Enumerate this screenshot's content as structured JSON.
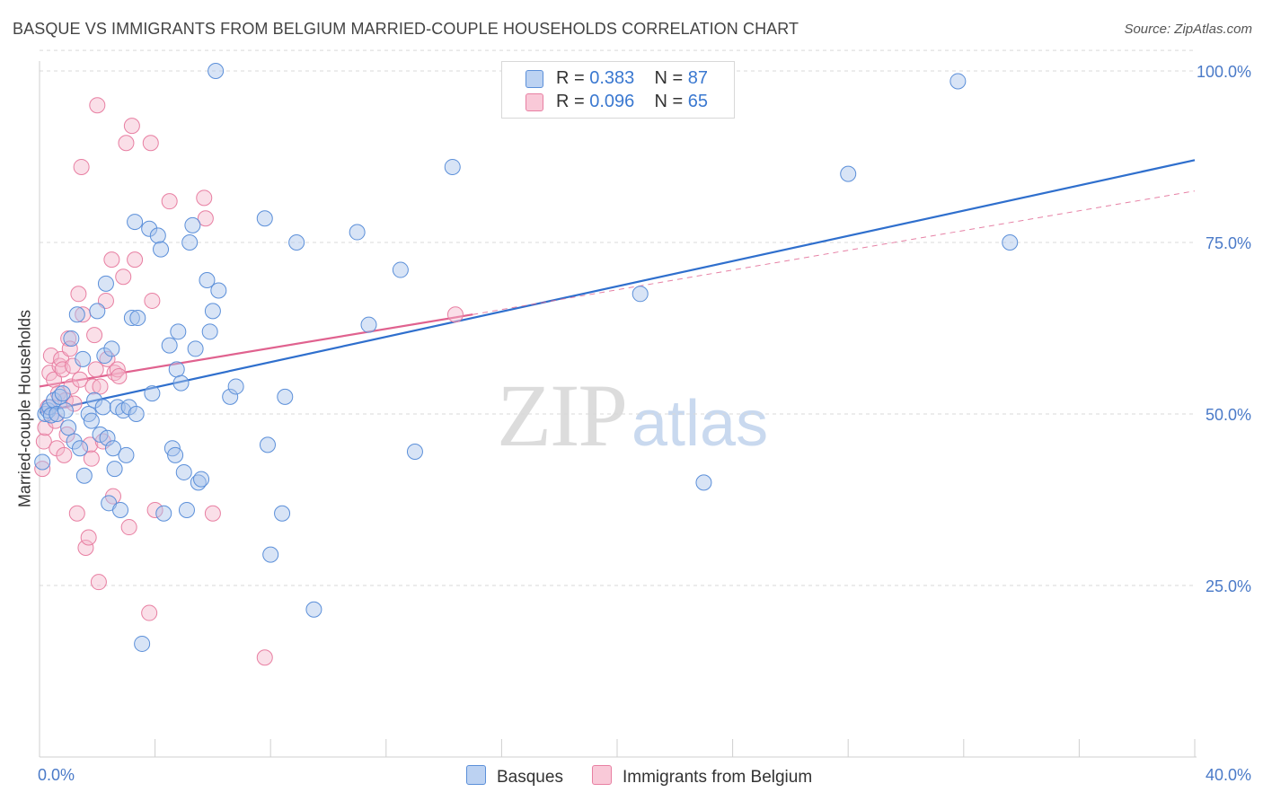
{
  "title": "BASQUE VS IMMIGRANTS FROM BELGIUM MARRIED-COUPLE HOUSEHOLDS CORRELATION CHART",
  "source": "Source: ZipAtlas.com",
  "watermark": {
    "zip": "ZIP",
    "atlas": "atlas"
  },
  "legend": {
    "rows": [
      {
        "r_label": "R =",
        "r_value": "0.383",
        "n_label": "N =",
        "n_value": "87"
      },
      {
        "r_label": "R =",
        "r_value": "0.096",
        "n_label": "N =",
        "n_value": "65"
      }
    ]
  },
  "bottom_legend": {
    "series1": "Basques",
    "series2": "Immigrants from Belgium"
  },
  "colors": {
    "blue_fill": "#a9c4ec",
    "blue_stroke": "#5b8fd9",
    "blue_line": "#2f6fcd",
    "pink_fill": "#f5b8cb",
    "pink_stroke": "#e87fa2",
    "pink_line": "#e0628f",
    "axis_text": "#4a7ac8",
    "grid": "#d9d9d9"
  },
  "chart_data": {
    "type": "scatter",
    "title": "BASQUE VS IMMIGRANTS FROM BELGIUM MARRIED-COUPLE HOUSEHOLDS CORRELATION CHART",
    "xlabel": "",
    "ylabel": "Married-couple Households",
    "xlim": [
      0,
      40
    ],
    "ylim": [
      0,
      105
    ],
    "x_tick_labels": [
      "0.0%",
      "40.0%"
    ],
    "y_ticks": [
      25,
      50,
      75,
      100
    ],
    "y_tick_labels": [
      "25.0%",
      "50.0%",
      "75.0%",
      "100.0%"
    ],
    "series": [
      {
        "name": "Basques",
        "r": 0.383,
        "n": 87,
        "trend": {
          "x": [
            0,
            40
          ],
          "y": [
            50.2,
            87.0
          ],
          "style": "solid"
        },
        "points": [
          [
            0.1,
            43
          ],
          [
            0.2,
            50
          ],
          [
            0.3,
            50.5
          ],
          [
            0.35,
            51
          ],
          [
            0.4,
            49.8
          ],
          [
            0.5,
            52
          ],
          [
            0.6,
            50
          ],
          [
            0.7,
            52.5
          ],
          [
            0.8,
            53
          ],
          [
            0.9,
            50.5
          ],
          [
            1.0,
            48
          ],
          [
            1.1,
            61
          ],
          [
            1.2,
            46
          ],
          [
            1.3,
            64.5
          ],
          [
            1.4,
            45
          ],
          [
            1.5,
            58
          ],
          [
            1.55,
            41
          ],
          [
            1.7,
            50
          ],
          [
            1.8,
            49
          ],
          [
            1.9,
            52
          ],
          [
            2.0,
            65
          ],
          [
            2.1,
            47
          ],
          [
            2.2,
            51
          ],
          [
            2.25,
            58.5
          ],
          [
            2.3,
            69
          ],
          [
            2.35,
            46.5
          ],
          [
            2.4,
            37
          ],
          [
            2.5,
            59.5
          ],
          [
            2.55,
            45
          ],
          [
            2.6,
            42
          ],
          [
            2.7,
            51
          ],
          [
            2.8,
            36
          ],
          [
            2.9,
            50.5
          ],
          [
            3.0,
            44
          ],
          [
            3.1,
            51
          ],
          [
            3.2,
            64
          ],
          [
            3.3,
            78
          ],
          [
            3.35,
            50
          ],
          [
            3.4,
            64
          ],
          [
            3.55,
            16.5
          ],
          [
            3.8,
            77
          ],
          [
            3.9,
            53
          ],
          [
            4.1,
            76
          ],
          [
            4.2,
            74
          ],
          [
            4.3,
            35.5
          ],
          [
            4.5,
            60
          ],
          [
            4.6,
            45
          ],
          [
            4.7,
            44
          ],
          [
            4.75,
            56.5
          ],
          [
            4.8,
            62
          ],
          [
            4.9,
            54.5
          ],
          [
            5.0,
            41.5
          ],
          [
            5.1,
            36
          ],
          [
            5.2,
            75
          ],
          [
            5.3,
            77.5
          ],
          [
            5.4,
            59.5
          ],
          [
            5.5,
            40
          ],
          [
            5.6,
            40.5
          ],
          [
            5.8,
            69.5
          ],
          [
            5.9,
            62
          ],
          [
            6.0,
            65
          ],
          [
            6.1,
            100
          ],
          [
            6.2,
            68
          ],
          [
            6.6,
            52.5
          ],
          [
            6.8,
            54
          ],
          [
            7.8,
            78.5
          ],
          [
            7.9,
            45.5
          ],
          [
            8.0,
            29.5
          ],
          [
            8.4,
            35.5
          ],
          [
            8.5,
            52.5
          ],
          [
            8.9,
            75
          ],
          [
            9.5,
            21.5
          ],
          [
            11.0,
            76.5
          ],
          [
            11.4,
            63
          ],
          [
            12.5,
            71
          ],
          [
            13.0,
            44.5
          ],
          [
            14.3,
            86
          ],
          [
            20.8,
            67.5
          ],
          [
            23.0,
            40
          ],
          [
            28.0,
            85
          ],
          [
            31.8,
            98.5
          ],
          [
            33.6,
            75
          ]
        ]
      },
      {
        "name": "Immigrants from Belgium",
        "r": 0.096,
        "n": 65,
        "trend": {
          "x": [
            0,
            15
          ],
          "y": [
            54.0,
            64.5
          ],
          "style": "solid",
          "extension": {
            "x": [
              15,
              40
            ],
            "y": [
              64.5,
              82.5
            ],
            "style": "dashed"
          }
        },
        "points": [
          [
            0.1,
            42
          ],
          [
            0.15,
            46
          ],
          [
            0.2,
            48
          ],
          [
            0.3,
            51
          ],
          [
            0.35,
            56
          ],
          [
            0.4,
            58.5
          ],
          [
            0.5,
            55
          ],
          [
            0.55,
            49
          ],
          [
            0.6,
            45
          ],
          [
            0.65,
            53
          ],
          [
            0.7,
            57
          ],
          [
            0.75,
            58
          ],
          [
            0.8,
            56.5
          ],
          [
            0.85,
            44
          ],
          [
            0.9,
            52
          ],
          [
            0.95,
            47
          ],
          [
            1.0,
            61
          ],
          [
            1.05,
            59.5
          ],
          [
            1.1,
            54
          ],
          [
            1.15,
            57
          ],
          [
            1.2,
            51.5
          ],
          [
            1.3,
            35.5
          ],
          [
            1.35,
            67.5
          ],
          [
            1.4,
            55
          ],
          [
            1.45,
            86
          ],
          [
            1.5,
            64.5
          ],
          [
            1.6,
            30.5
          ],
          [
            1.7,
            32
          ],
          [
            1.75,
            45.5
          ],
          [
            1.8,
            43.5
          ],
          [
            1.85,
            54
          ],
          [
            1.9,
            61.5
          ],
          [
            1.95,
            56.5
          ],
          [
            2.0,
            95
          ],
          [
            2.05,
            25.5
          ],
          [
            2.1,
            54
          ],
          [
            2.2,
            46
          ],
          [
            2.3,
            66.5
          ],
          [
            2.35,
            58
          ],
          [
            2.5,
            72.5
          ],
          [
            2.55,
            38
          ],
          [
            2.6,
            56
          ],
          [
            2.7,
            56.5
          ],
          [
            2.75,
            55.5
          ],
          [
            2.9,
            70
          ],
          [
            3.0,
            89.5
          ],
          [
            3.1,
            33.5
          ],
          [
            3.2,
            92
          ],
          [
            3.3,
            72.5
          ],
          [
            3.8,
            21
          ],
          [
            3.85,
            89.5
          ],
          [
            3.9,
            66.5
          ],
          [
            4.0,
            36
          ],
          [
            4.5,
            81
          ],
          [
            5.7,
            81.5
          ],
          [
            5.75,
            78.5
          ],
          [
            6.0,
            35.5
          ],
          [
            7.8,
            14.5
          ],
          [
            14.4,
            64.5
          ]
        ]
      }
    ]
  }
}
